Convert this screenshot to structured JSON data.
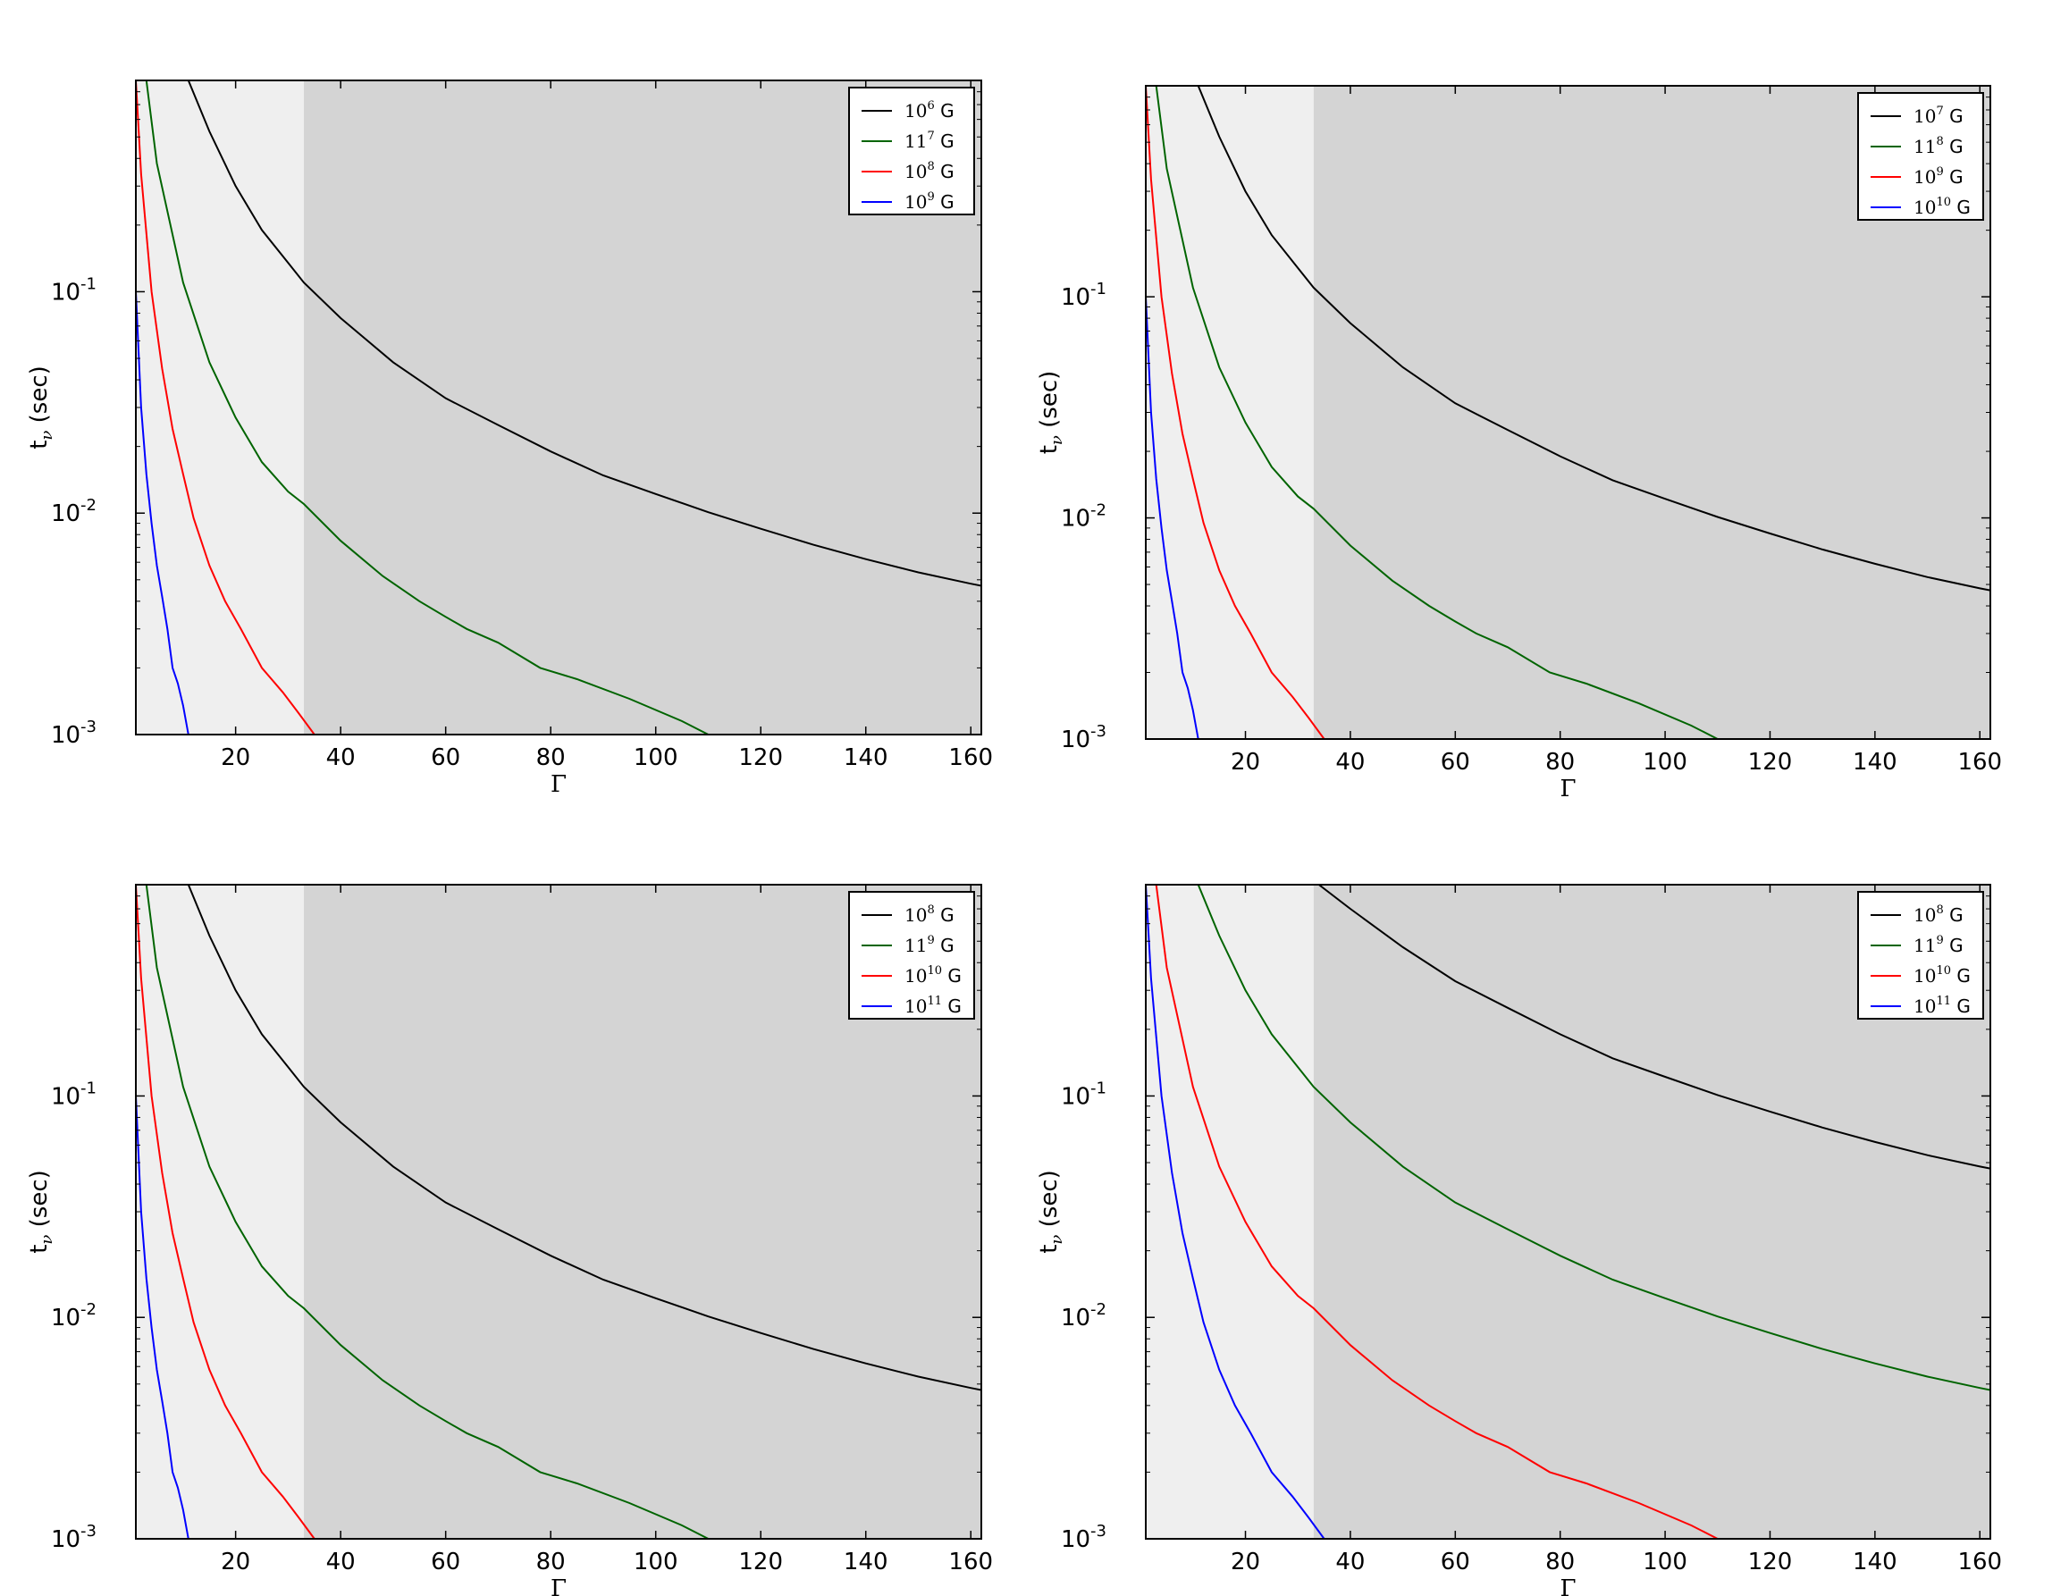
{
  "chart_data": [
    {
      "type": "line",
      "xlabel": "Γ",
      "ylabel_main": "t",
      "ylabel_sub": "ν",
      "ylabel_unit": "(sec)",
      "xlim": [
        1,
        162
      ],
      "ylim": [
        0.001,
        0.9
      ],
      "yscale": "log",
      "xticks": [
        20,
        40,
        60,
        80,
        100,
        120,
        140,
        160
      ],
      "yticks": [
        {
          "base": "10",
          "exp": "-3",
          "value": 0.001
        },
        {
          "base": "10",
          "exp": "-2",
          "value": 0.01
        },
        {
          "base": "10",
          "exp": "-1",
          "value": 0.1
        }
      ],
      "shaded_regions": [
        {
          "x0": 1,
          "x1": 33,
          "color": "#efefef"
        },
        {
          "x0": 33,
          "x1": 162,
          "color": "#d4d4d4"
        }
      ],
      "legend_position": "top-right",
      "series": [
        {
          "name": "10^6 G",
          "base": "10",
          "exp": "6",
          "unit": "G",
          "color": "#000000",
          "x": [
            11,
            15,
            20,
            25,
            30,
            33,
            40,
            50,
            60,
            70,
            80,
            90,
            100,
            110,
            120,
            130,
            140,
            150,
            160,
            162
          ],
          "y": [
            0.9,
            0.53,
            0.3,
            0.19,
            0.135,
            0.11,
            0.076,
            0.048,
            0.033,
            0.025,
            0.019,
            0.0148,
            0.0122,
            0.0101,
            0.0085,
            0.0072,
            0.0062,
            0.0054,
            0.0048,
            0.0047
          ]
        },
        {
          "name": "11^7 G",
          "base": "11",
          "exp": "7",
          "unit": "G",
          "color": "#006400",
          "x": [
            3,
            5,
            10,
            15,
            20,
            25,
            30,
            33,
            40,
            48,
            55,
            60,
            64,
            70,
            78,
            85,
            95,
            105,
            110
          ],
          "y": [
            0.9,
            0.38,
            0.11,
            0.048,
            0.027,
            0.017,
            0.0125,
            0.011,
            0.0075,
            0.0052,
            0.004,
            0.0034,
            0.003,
            0.0026,
            0.002,
            0.00178,
            0.00145,
            0.00115,
            0.001
          ]
        },
        {
          "name": "10^8 G",
          "base": "10",
          "exp": "8",
          "unit": "G",
          "color": "#ff0000",
          "x": [
            1,
            2,
            4,
            6,
            8,
            10,
            12,
            15,
            18,
            21,
            25,
            29,
            32,
            35
          ],
          "y": [
            0.9,
            0.34,
            0.1,
            0.045,
            0.024,
            0.015,
            0.0095,
            0.0058,
            0.004,
            0.003,
            0.002,
            0.00155,
            0.00125,
            0.001
          ]
        },
        {
          "name": "10^9 G",
          "base": "10",
          "exp": "9",
          "unit": "G",
          "color": "#0000ff",
          "x": [
            1,
            2,
            3,
            4,
            5,
            6,
            7,
            8,
            9,
            10,
            11
          ],
          "y": [
            0.1,
            0.03,
            0.015,
            0.009,
            0.0058,
            0.0042,
            0.003,
            0.002,
            0.0017,
            0.00135,
            0.001
          ]
        }
      ]
    },
    {
      "type": "line",
      "xlabel": "Γ",
      "ylabel_main": "t",
      "ylabel_sub": "ν",
      "ylabel_unit": "(sec)",
      "xlim": [
        1,
        162
      ],
      "ylim": [
        0.001,
        0.9
      ],
      "yscale": "log",
      "xticks": [
        20,
        40,
        60,
        80,
        100,
        120,
        140,
        160
      ],
      "yticks": [
        {
          "base": "10",
          "exp": "-3",
          "value": 0.001
        },
        {
          "base": "10",
          "exp": "-2",
          "value": 0.01
        },
        {
          "base": "10",
          "exp": "-1",
          "value": 0.1
        }
      ],
      "shaded_regions": [
        {
          "x0": 1,
          "x1": 33,
          "color": "#efefef"
        },
        {
          "x0": 33,
          "x1": 162,
          "color": "#d4d4d4"
        }
      ],
      "legend_position": "top-right",
      "series": [
        {
          "name": "10^7 G",
          "base": "10",
          "exp": "7",
          "unit": "G",
          "color": "#000000",
          "x": [
            11,
            15,
            20,
            25,
            30,
            33,
            40,
            50,
            60,
            70,
            80,
            90,
            100,
            110,
            120,
            130,
            140,
            150,
            160,
            162
          ],
          "y": [
            0.9,
            0.53,
            0.3,
            0.19,
            0.135,
            0.11,
            0.076,
            0.048,
            0.033,
            0.025,
            0.019,
            0.0148,
            0.0122,
            0.0101,
            0.0085,
            0.0072,
            0.0062,
            0.0054,
            0.0048,
            0.0047
          ]
        },
        {
          "name": "11^8 G",
          "base": "11",
          "exp": "8",
          "unit": "G",
          "color": "#006400",
          "x": [
            3,
            5,
            10,
            15,
            20,
            25,
            30,
            33,
            40,
            48,
            55,
            60,
            64,
            70,
            78,
            85,
            95,
            105,
            110
          ],
          "y": [
            0.9,
            0.38,
            0.11,
            0.048,
            0.027,
            0.017,
            0.0125,
            0.011,
            0.0075,
            0.0052,
            0.004,
            0.0034,
            0.003,
            0.0026,
            0.002,
            0.00178,
            0.00145,
            0.00115,
            0.001
          ]
        },
        {
          "name": "10^9 G",
          "base": "10",
          "exp": "9",
          "unit": "G",
          "color": "#ff0000",
          "x": [
            1,
            2,
            4,
            6,
            8,
            10,
            12,
            15,
            18,
            21,
            25,
            29,
            32,
            35
          ],
          "y": [
            0.9,
            0.34,
            0.1,
            0.045,
            0.024,
            0.015,
            0.0095,
            0.0058,
            0.004,
            0.003,
            0.002,
            0.00155,
            0.00125,
            0.001
          ]
        },
        {
          "name": "10^10 G",
          "base": "10",
          "exp": "10",
          "unit": "G",
          "color": "#0000ff",
          "x": [
            1,
            2,
            3,
            4,
            5,
            6,
            7,
            8,
            9,
            10,
            11
          ],
          "y": [
            0.1,
            0.03,
            0.015,
            0.009,
            0.0058,
            0.0042,
            0.003,
            0.002,
            0.0017,
            0.00135,
            0.001
          ]
        }
      ]
    },
    {
      "type": "line",
      "xlabel": "Γ",
      "ylabel_main": "t",
      "ylabel_sub": "ν",
      "ylabel_unit": "(sec)",
      "xlim": [
        1,
        162
      ],
      "ylim": [
        0.001,
        0.9
      ],
      "yscale": "log",
      "xticks": [
        20,
        40,
        60,
        80,
        100,
        120,
        140,
        160
      ],
      "yticks": [
        {
          "base": "10",
          "exp": "-3",
          "value": 0.001
        },
        {
          "base": "10",
          "exp": "-2",
          "value": 0.01
        },
        {
          "base": "10",
          "exp": "-1",
          "value": 0.1
        }
      ],
      "shaded_regions": [
        {
          "x0": 1,
          "x1": 33,
          "color": "#efefef"
        },
        {
          "x0": 33,
          "x1": 162,
          "color": "#d4d4d4"
        }
      ],
      "legend_position": "top-right",
      "series": [
        {
          "name": "10^8 G",
          "base": "10",
          "exp": "8",
          "unit": "G",
          "color": "#000000",
          "x": [
            11,
            15,
            20,
            25,
            30,
            33,
            40,
            50,
            60,
            70,
            80,
            90,
            100,
            110,
            120,
            130,
            140,
            150,
            160,
            162
          ],
          "y": [
            0.9,
            0.53,
            0.3,
            0.19,
            0.135,
            0.11,
            0.076,
            0.048,
            0.033,
            0.025,
            0.019,
            0.0148,
            0.0122,
            0.0101,
            0.0085,
            0.0072,
            0.0062,
            0.0054,
            0.0048,
            0.0047
          ]
        },
        {
          "name": "11^9 G",
          "base": "11",
          "exp": "9",
          "unit": "G",
          "color": "#006400",
          "x": [
            3,
            5,
            10,
            15,
            20,
            25,
            30,
            33,
            40,
            48,
            55,
            60,
            64,
            70,
            78,
            85,
            95,
            105,
            110
          ],
          "y": [
            0.9,
            0.38,
            0.11,
            0.048,
            0.027,
            0.017,
            0.0125,
            0.011,
            0.0075,
            0.0052,
            0.004,
            0.0034,
            0.003,
            0.0026,
            0.002,
            0.00178,
            0.00145,
            0.00115,
            0.001
          ]
        },
        {
          "name": "10^10 G",
          "base": "10",
          "exp": "10",
          "unit": "G",
          "color": "#ff0000",
          "x": [
            1,
            2,
            4,
            6,
            8,
            10,
            12,
            15,
            18,
            21,
            25,
            29,
            32,
            35
          ],
          "y": [
            0.9,
            0.34,
            0.1,
            0.045,
            0.024,
            0.015,
            0.0095,
            0.0058,
            0.004,
            0.003,
            0.002,
            0.00155,
            0.00125,
            0.001
          ]
        },
        {
          "name": "10^11 G",
          "base": "10",
          "exp": "11",
          "unit": "G",
          "color": "#0000ff",
          "x": [
            1,
            2,
            3,
            4,
            5,
            6,
            7,
            8,
            9,
            10,
            11
          ],
          "y": [
            0.1,
            0.03,
            0.015,
            0.009,
            0.0058,
            0.0042,
            0.003,
            0.002,
            0.0017,
            0.00135,
            0.001
          ]
        }
      ]
    },
    {
      "type": "line",
      "xlabel": "Γ",
      "ylabel_main": "t",
      "ylabel_sub": "ν",
      "ylabel_unit": "(sec)",
      "xlim": [
        1,
        162
      ],
      "ylim": [
        0.001,
        0.9
      ],
      "yscale": "log",
      "xticks": [
        20,
        40,
        60,
        80,
        100,
        120,
        140,
        160
      ],
      "yticks": [
        {
          "base": "10",
          "exp": "-3",
          "value": 0.001
        },
        {
          "base": "10",
          "exp": "-2",
          "value": 0.01
        },
        {
          "base": "10",
          "exp": "-1",
          "value": 0.1
        }
      ],
      "shaded_regions": [
        {
          "x0": 1,
          "x1": 33,
          "color": "#efefef"
        },
        {
          "x0": 33,
          "x1": 162,
          "color": "#d4d4d4"
        }
      ],
      "legend_position": "top-right",
      "series": [
        {
          "name": "10^8 G",
          "base": "10",
          "exp": "8",
          "unit": "G",
          "color": "#000000",
          "x": [
            34,
            40,
            50,
            60,
            70,
            80,
            90,
            100,
            110,
            120,
            130,
            140,
            150,
            160,
            162
          ],
          "y": [
            0.9,
            0.7,
            0.47,
            0.33,
            0.25,
            0.19,
            0.148,
            0.122,
            0.101,
            0.085,
            0.072,
            0.062,
            0.054,
            0.048,
            0.047
          ]
        },
        {
          "name": "11^9 G",
          "base": "11",
          "exp": "9",
          "unit": "G",
          "color": "#006400",
          "x": [
            11,
            15,
            20,
            25,
            30,
            33,
            40,
            50,
            60,
            70,
            80,
            90,
            100,
            110,
            120,
            130,
            140,
            150,
            160,
            162
          ],
          "y": [
            0.9,
            0.53,
            0.3,
            0.19,
            0.135,
            0.11,
            0.076,
            0.048,
            0.033,
            0.025,
            0.019,
            0.0148,
            0.0122,
            0.0101,
            0.0085,
            0.0072,
            0.0062,
            0.0054,
            0.0048,
            0.0047
          ]
        },
        {
          "name": "10^10 G",
          "base": "10",
          "exp": "10",
          "unit": "G",
          "color": "#ff0000",
          "x": [
            3,
            5,
            10,
            15,
            20,
            25,
            30,
            33,
            40,
            48,
            55,
            60,
            64,
            70,
            78,
            85,
            95,
            105,
            110
          ],
          "y": [
            0.9,
            0.38,
            0.11,
            0.048,
            0.027,
            0.017,
            0.0125,
            0.011,
            0.0075,
            0.0052,
            0.004,
            0.0034,
            0.003,
            0.0026,
            0.002,
            0.00178,
            0.00145,
            0.00115,
            0.001
          ]
        },
        {
          "name": "10^11 G",
          "base": "10",
          "exp": "11",
          "unit": "G",
          "color": "#0000ff",
          "x": [
            1,
            2,
            4,
            6,
            8,
            10,
            12,
            15,
            18,
            21,
            25,
            29,
            32,
            35
          ],
          "y": [
            0.9,
            0.34,
            0.1,
            0.045,
            0.024,
            0.015,
            0.0095,
            0.0058,
            0.004,
            0.003,
            0.002,
            0.00155,
            0.00125,
            0.001
          ]
        }
      ]
    }
  ]
}
